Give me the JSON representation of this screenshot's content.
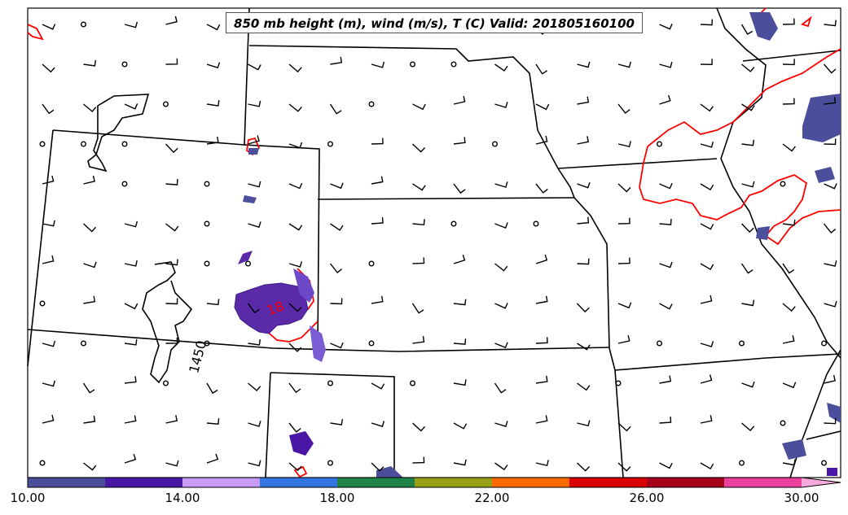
{
  "title": "850 mb height (m), wind (m/s), T (C) Valid: 201805160100",
  "contour_labels": {
    "height": "1450",
    "temperature": "18"
  },
  "colorbar": {
    "colors": [
      "#4b4e9a",
      "#4a16a6",
      "#c79af5",
      "#3174e2",
      "#218247",
      "#979f17",
      "#ff6a00",
      "#d80000",
      "#a60019",
      "#ea3f9d",
      "#f6a9dc"
    ],
    "tick_labels": [
      "10.00",
      "14.00",
      "18.00",
      "22.00",
      "26.00",
      "30.00"
    ],
    "tick_values": [
      10,
      14,
      18,
      22,
      26,
      30
    ],
    "range": [
      10,
      31
    ]
  },
  "colors": {
    "border": "#000000",
    "temperature_contour": "#ff0000",
    "height_contour": "#000000"
  }
}
